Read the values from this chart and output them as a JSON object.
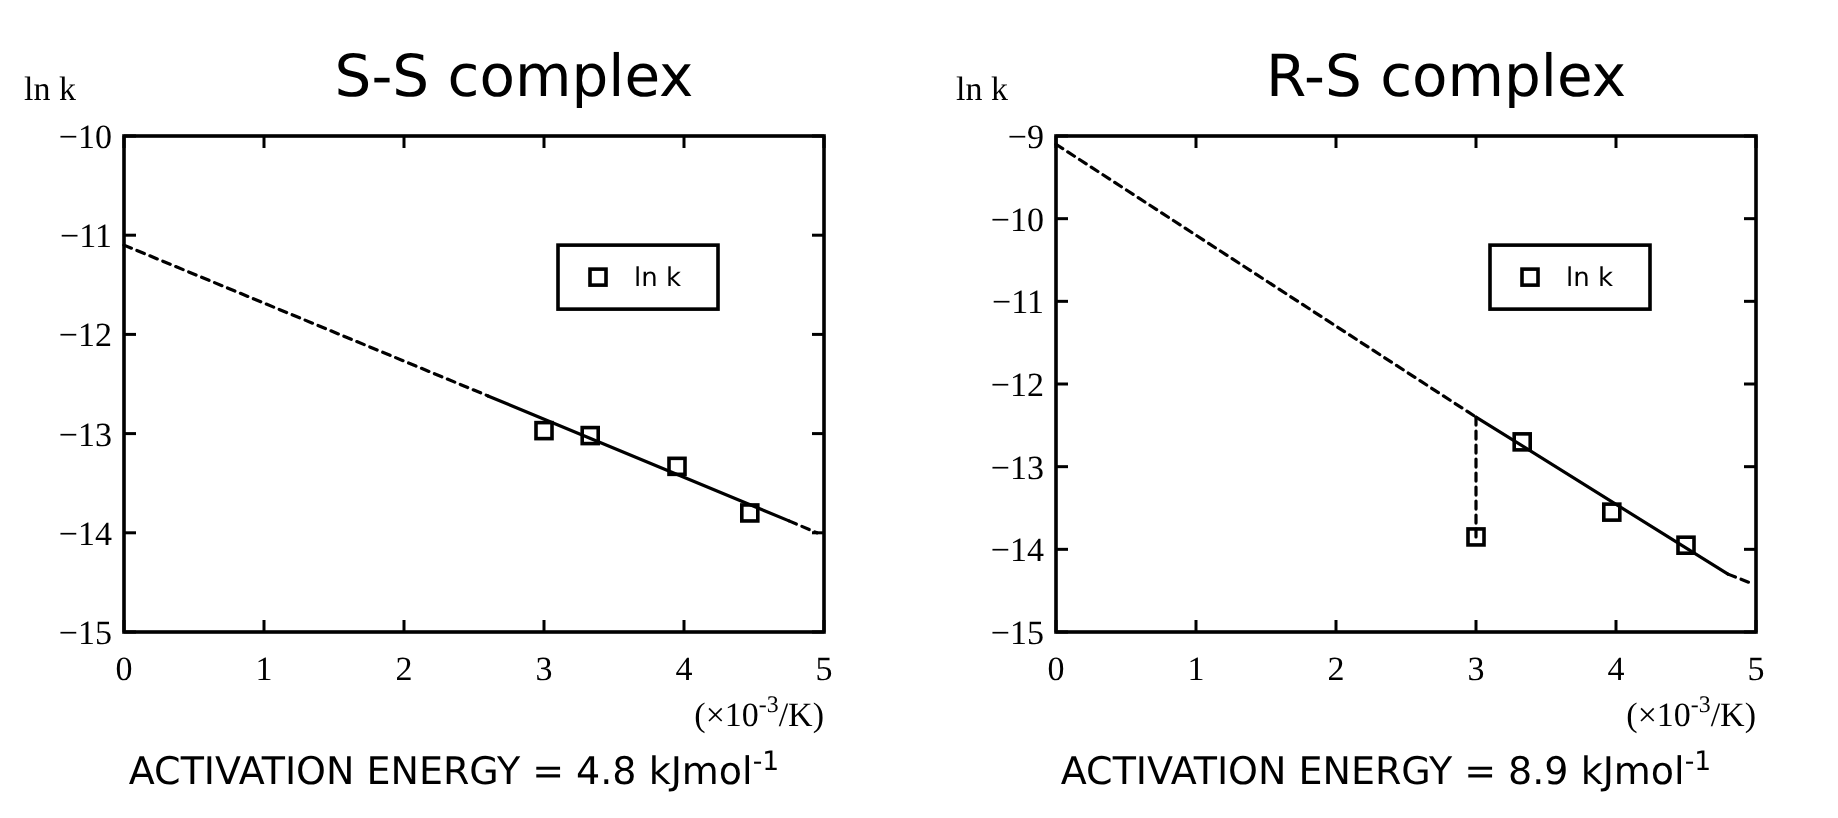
{
  "chart_data": [
    {
      "type": "scatter",
      "title": "S-S complex",
      "ylabel": "ln k",
      "xlabel": "(×10$^{-3}$/K)",
      "xlim": [
        0,
        5
      ],
      "ylim": [
        -15,
        -10
      ],
      "xticks": [
        0,
        1,
        2,
        3,
        4,
        5
      ],
      "yticks": [
        -15,
        -14,
        -13,
        -12,
        -11,
        -10
      ],
      "legend": "top right",
      "annotations": [
        "ACTIVATION ENERGY = 4.8 kJmol$^{-1}$"
      ],
      "series": [
        {
          "type": "line",
          "x": [
            0,
            2.6
          ],
          "values": [
            -11.1,
            -12.62
          ],
          "color": "#000000",
          "line_style": "dashed",
          "marker": "none"
        },
        {
          "type": "line",
          "x": [
            2.6,
            4.75
          ],
          "values": [
            -12.62,
            -13.88
          ],
          "color": "#000000",
          "line_style": "solid",
          "marker": "none"
        },
        {
          "type": "line",
          "x": [
            4.75,
            4.95
          ],
          "values": [
            -13.88,
            -14.0
          ],
          "color": "#000000",
          "line_style": "dashed",
          "marker": "none"
        },
        {
          "name": "ln k",
          "x": [
            3.0,
            3.33,
            3.95,
            4.47
          ],
          "values": [
            -12.97,
            -13.02,
            -13.33,
            -13.8
          ],
          "color": "#000000",
          "marker": "square"
        }
      ]
    },
    {
      "type": "scatter",
      "title": "R-S complex",
      "ylabel": "ln k",
      "xlabel": "(×10$^{-3}$/K)",
      "xlim": [
        0,
        5
      ],
      "ylim": [
        -15,
        -9
      ],
      "xticks": [
        0,
        1,
        2,
        3,
        4,
        5
      ],
      "yticks": [
        -15,
        -14,
        -13,
        -12,
        -11,
        -10,
        -9
      ],
      "legend": "top right",
      "annotations": [
        "ACTIVATION ENERGY = 8.9 kJmol$^{-1}$"
      ],
      "series": [
        {
          "type": "line",
          "x": [
            0,
            3.0
          ],
          "values": [
            -9.1,
            -12.4
          ],
          "color": "#000000",
          "line_style": "dashed",
          "marker": "none"
        },
        {
          "type": "line",
          "x": [
            3.0,
            4.8
          ],
          "values": [
            -12.4,
            -14.3
          ],
          "color": "#000000",
          "line_style": "solid",
          "marker": "none"
        },
        {
          "type": "line",
          "x": [
            4.8,
            4.95
          ],
          "values": [
            -14.3,
            -14.4
          ],
          "color": "#000000",
          "line_style": "dashed",
          "marker": "none"
        },
        {
          "type": "line",
          "x": [
            3.0,
            3.0
          ],
          "values": [
            -12.4,
            -13.85
          ],
          "color": "#000000",
          "line_style": "dashed",
          "marker": "none"
        },
        {
          "name": "ln k",
          "x": [
            3.0,
            3.33,
            3.97,
            4.5
          ],
          "values": [
            -13.85,
            -12.7,
            -13.55,
            -13.95
          ],
          "color": "#000000",
          "marker": "square"
        }
      ]
    }
  ]
}
